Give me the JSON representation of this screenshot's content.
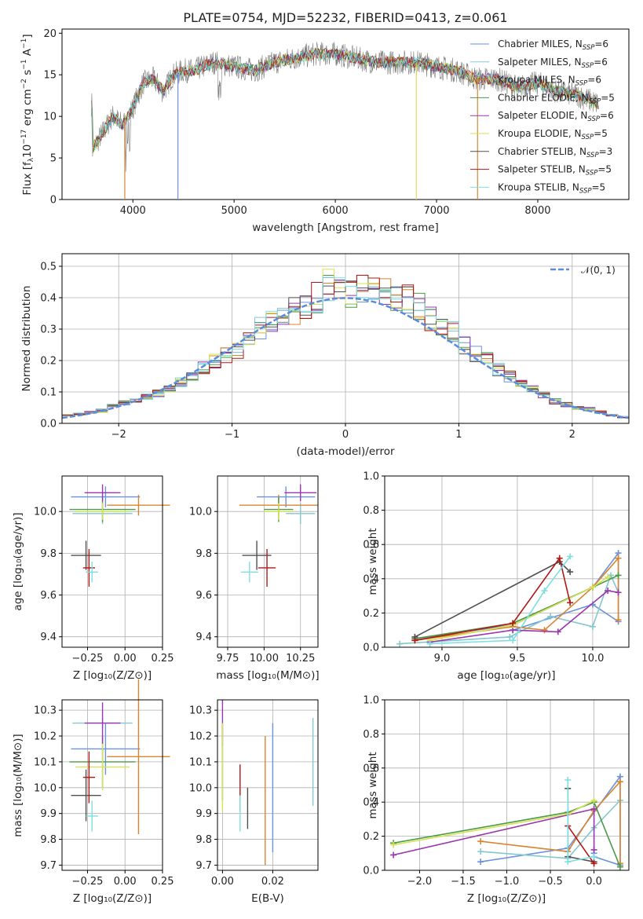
{
  "title": "PLATE=0754, MJD=52232, FIBERID=0413, z=0.061",
  "models": [
    {
      "name": "Chabrier MILES, N",
      "n": "=6",
      "color": "#6b93dd"
    },
    {
      "name": "Salpeter MILES, N",
      "n": "=6",
      "color": "#82c8cd"
    },
    {
      "name": "Kroupa MILES, N",
      "n": "=6",
      "color": "#d98530"
    },
    {
      "name": "Chabrier ELODIE, N",
      "n": "=5",
      "color": "#4a9a48"
    },
    {
      "name": "Salpeter ELODIE, N",
      "n": "=6",
      "color": "#9a36b0"
    },
    {
      "name": "Kroupa ELODIE, N",
      "n": "=5",
      "color": "#d6e156"
    },
    {
      "name": "Chabrier STELIB, N",
      "n": "=3",
      "color": "#505050"
    },
    {
      "name": "Salpeter STELIB, N",
      "n": "=5",
      "color": "#b01818"
    },
    {
      "name": "Kroupa STELIB, N",
      "n": "=5",
      "color": "#7edfe3"
    }
  ],
  "legend_sub": "SSP",
  "panels": {
    "spectrum": {
      "xlabel": "wavelength [Angstrom, rest frame]",
      "ylabel_a": "Flux [f",
      "ylabel_b": "10",
      "ylabel_c": "−17",
      "ylabel_d": " erg cm",
      "ylabel_e": "−2",
      "ylabel_f": " s",
      "ylabel_g": "−1",
      "ylabel_h": " A",
      "ylabel_i": "−1",
      "ylabel_j": "]",
      "xticks": [
        "4000",
        "5000",
        "6000",
        "7000",
        "8000"
      ],
      "yticks": [
        "0",
        "5",
        "10",
        "15",
        "20"
      ]
    },
    "residuals": {
      "xlabel": "(data-model)/error",
      "ylabel": "Normed distribution",
      "legend": "𝒩(0, 1)",
      "xticks": [
        "−2",
        "−1",
        "0",
        "1",
        "2"
      ],
      "yticks": [
        "0.0",
        "0.1",
        "0.2",
        "0.3",
        "0.4",
        "0.5"
      ]
    },
    "age_vs_Z": {
      "xlabel": "Z [log₁₀(Z/Z⊙)]",
      "ylabel": "age  [log₁₀(age/yr)]",
      "xticks": [
        "−0.25",
        "0.00",
        "0.25"
      ],
      "yticks": [
        "9.4",
        "9.6",
        "9.8",
        "10.0"
      ]
    },
    "age_vs_mass": {
      "xlabel": "mass [log₁₀(M/M⊙)]",
      "xticks": [
        "9.75",
        "10.00",
        "10.25"
      ],
      "yticks": [
        "9.4",
        "9.6",
        "9.8",
        "10.0"
      ]
    },
    "weight_vs_age": {
      "xlabel": "age  [log₁₀(age/yr)]",
      "ylabel": "mass weight",
      "xticks": [
        "9.0",
        "9.5",
        "10.0"
      ],
      "yticks": [
        "0.0",
        "0.2",
        "0.4",
        "0.6",
        "0.8",
        "1.0"
      ]
    },
    "mass_vs_Z": {
      "xlabel": "Z [log₁₀(Z/Z⊙)]",
      "ylabel": "mass [log₁₀(M/M⊙)]",
      "xticks": [
        "−0.25",
        "0.00",
        "0.25"
      ],
      "yticks": [
        "9.7",
        "9.8",
        "9.9",
        "10.0",
        "10.1",
        "10.2",
        "10.3"
      ]
    },
    "mass_vs_ebv": {
      "xlabel": "E(B-V)",
      "xticks": [
        "0.00",
        "0.02"
      ],
      "yticks": [
        "9.7",
        "9.8",
        "9.9",
        "10.0",
        "10.1",
        "10.2",
        "10.3"
      ]
    },
    "weight_vs_Z": {
      "xlabel": "Z [log₁₀(Z/Z⊙)]",
      "ylabel": "mass weight",
      "xticks": [
        "−2.0",
        "−1.5",
        "−1.0",
        "−0.5",
        "0.0"
      ],
      "yticks": [
        "0.0",
        "0.2",
        "0.4",
        "0.6",
        "0.8",
        "1.0"
      ]
    }
  },
  "chart_data": [
    {
      "type": "line",
      "title": "PLATE=0754, MJD=52232, FIBERID=0413, z=0.061",
      "xlabel": "wavelength [Angstrom, rest frame]",
      "ylabel": "Flux [fλ10−17 erg cm−2 s−1 A−1]",
      "xlim": [
        3300,
        8900
      ],
      "ylim": [
        0,
        20.5
      ],
      "legend": "top-right",
      "x": [
        3600,
        3700,
        3800,
        3900,
        4000,
        4100,
        4200,
        4300,
        4400,
        4500,
        4600,
        4700,
        4800,
        5000,
        5200,
        5400,
        5600,
        5800,
        6000,
        6200,
        6400,
        6600,
        6800,
        7000,
        7200,
        7400,
        7600,
        7800,
        8000,
        8200,
        8400,
        8600
      ],
      "y": [
        6,
        8,
        10,
        9,
        11,
        14,
        14.5,
        13,
        15,
        15.5,
        15.5,
        16,
        16.5,
        16,
        15.5,
        16.5,
        17,
        17.5,
        17.5,
        17,
        16.5,
        16.5,
        16.5,
        16,
        15.5,
        14.5,
        14.5,
        13.5,
        14,
        13,
        12.5,
        11.5
      ]
    },
    {
      "type": "bar",
      "xlabel": "(data-model)/error",
      "ylabel": "Normed distribution",
      "xlim": [
        -2.5,
        2.5
      ],
      "ylim": [
        0,
        0.54
      ],
      "legend": "top-right",
      "bin_width": 0.1,
      "x": [
        -2.45,
        -2.35,
        -2.25,
        -2.15,
        -2.05,
        -1.95,
        -1.85,
        -1.75,
        -1.65,
        -1.55,
        -1.45,
        -1.35,
        -1.25,
        -1.15,
        -1.05,
        -0.95,
        -0.85,
        -0.75,
        -0.65,
        -0.55,
        -0.45,
        -0.35,
        -0.25,
        -0.15,
        -0.05,
        0.05,
        0.15,
        0.25,
        0.35,
        0.45,
        0.55,
        0.65,
        0.75,
        0.85,
        0.95,
        1.05,
        1.15,
        1.25,
        1.35,
        1.45,
        1.55,
        1.65,
        1.75,
        1.85,
        1.95,
        2.05,
        2.15,
        2.25,
        2.35,
        2.45
      ],
      "values": [
        0.025,
        0.03,
        0.035,
        0.04,
        0.055,
        0.065,
        0.07,
        0.085,
        0.095,
        0.11,
        0.13,
        0.15,
        0.18,
        0.2,
        0.22,
        0.23,
        0.26,
        0.3,
        0.32,
        0.34,
        0.36,
        0.38,
        0.4,
        0.44,
        0.42,
        0.42,
        0.44,
        0.43,
        0.41,
        0.41,
        0.4,
        0.37,
        0.33,
        0.3,
        0.29,
        0.25,
        0.22,
        0.2,
        0.17,
        0.15,
        0.13,
        0.11,
        0.09,
        0.07,
        0.06,
        0.05,
        0.045,
        0.035,
        0.025,
        0.02
      ],
      "series": [
        {
          "name": "𝒩(0, 1)",
          "mu": 0,
          "sigma": 1
        }
      ]
    },
    {
      "type": "scatter",
      "xlabel": "Z [log₁₀(Z/Z⊙)]",
      "ylabel": "age  [log₁₀(age/yr)]",
      "xlim": [
        -0.42,
        0.25
      ],
      "ylim": [
        9.35,
        10.17
      ],
      "x": [
        -0.13,
        -0.15,
        0.09,
        -0.15,
        -0.15,
        -0.15,
        -0.26,
        -0.24,
        -0.22
      ],
      "y": [
        10.07,
        9.99,
        10.03,
        10.01,
        10.09,
        10.0,
        9.79,
        9.73,
        9.71
      ],
      "xerr": [
        0.23,
        0.2,
        0.21,
        0.22,
        0.12,
        0.18,
        0.1,
        0.04,
        0.04
      ],
      "yerr": [
        0.05,
        0.05,
        0.05,
        0.06,
        0.04,
        0.04,
        0.07,
        0.09,
        0.05
      ]
    },
    {
      "type": "scatter",
      "xlabel": "mass [log₁₀(M/M⊙)]",
      "xlim": [
        9.68,
        10.37
      ],
      "ylim": [
        9.35,
        10.17
      ],
      "x": [
        10.15,
        10.25,
        10.1,
        10.1,
        10.25,
        10.1,
        9.95,
        10.02,
        9.9
      ],
      "y": [
        10.07,
        9.99,
        10.03,
        10.01,
        10.09,
        10.0,
        9.79,
        9.73,
        9.71
      ],
      "xerr": [
        0.2,
        0.1,
        0.27,
        0.1,
        0.11,
        0.1,
        0.1,
        0.06,
        0.06
      ],
      "yerr": [
        0.05,
        0.05,
        0.05,
        0.06,
        0.04,
        0.04,
        0.07,
        0.09,
        0.05
      ]
    },
    {
      "type": "line",
      "xlabel": "age  [log₁₀(age/yr)]",
      "ylabel": "mass weight",
      "xlim": [
        8.62,
        10.24
      ],
      "ylim": [
        0,
        1
      ],
      "series": [
        {
          "x": [
            8.82,
            9.47,
            10.0,
            10.17,
            10.17,
            10.0,
            9.47
          ],
          "y": [
            0.05,
            0.13,
            0.35,
            0.55,
            0.15,
            0.25,
            0.1
          ]
        },
        {
          "x": [
            8.72,
            9.45,
            9.72,
            10.0,
            10.12,
            10.17
          ],
          "y": [
            0.02,
            0.06,
            0.18,
            0.12,
            0.42,
            0.32
          ]
        },
        {
          "x": [
            8.82,
            9.47,
            9.68,
            10.0,
            10.17,
            10.17
          ],
          "y": [
            0.04,
            0.12,
            0.1,
            0.35,
            0.52,
            0.16
          ]
        },
        {
          "x": [
            8.82,
            9.47,
            10.0,
            10.17
          ],
          "y": [
            0.05,
            0.14,
            0.35,
            0.42
          ]
        },
        {
          "x": [
            8.92,
            9.47,
            9.77,
            10.1,
            10.17
          ],
          "y": [
            0.03,
            0.1,
            0.09,
            0.33,
            0.32
          ]
        },
        {
          "x": [
            8.92,
            9.47,
            10.0,
            10.1
          ],
          "y": [
            0.04,
            0.13,
            0.35,
            0.41
          ]
        },
        {
          "x": [
            8.82,
            9.78,
            9.85
          ],
          "y": [
            0.06,
            0.5,
            0.44
          ]
        },
        {
          "x": [
            8.82,
            9.47,
            9.78,
            9.85
          ],
          "y": [
            0.04,
            0.14,
            0.52,
            0.26
          ]
        },
        {
          "x": [
            8.92,
            9.47,
            9.68,
            9.85
          ],
          "y": [
            0.02,
            0.04,
            0.33,
            0.53
          ]
        }
      ]
    },
    {
      "type": "scatter",
      "xlabel": "Z [log₁₀(Z/Z⊙)]",
      "ylabel": "mass [log₁₀(M/M⊙)]",
      "xlim": [
        -0.42,
        0.25
      ],
      "ylim": [
        9.68,
        10.34
      ],
      "x": [
        -0.13,
        -0.15,
        0.09,
        -0.15,
        -0.15,
        -0.15,
        -0.26,
        -0.24,
        -0.22
      ],
      "y": [
        10.15,
        10.25,
        10.12,
        10.1,
        10.25,
        10.08,
        9.97,
        10.04,
        9.89
      ],
      "xerr": [
        0.23,
        0.2,
        0.21,
        0.22,
        0.12,
        0.18,
        0.1,
        0.04,
        0.04
      ],
      "yerr": [
        0.1,
        0.02,
        0.3,
        0.1,
        0.08,
        0.09,
        0.1,
        0.1,
        0.06
      ]
    },
    {
      "type": "scatter",
      "xlabel": "E(B-V)",
      "xlim": [
        -0.002,
        0.038
      ],
      "ylim": [
        9.68,
        10.34
      ],
      "x": [
        0.02,
        0.036,
        0.017,
        0.0,
        0.0,
        0.0,
        0.01,
        0.007,
        0.007
      ],
      "y": [
        10.0,
        10.1,
        9.95,
        10.1,
        10.25,
        10.08,
        9.92,
        10.0,
        9.9
      ],
      "yerr": [
        0.25,
        0.17,
        0.25,
        0.15,
        0.09,
        0.17,
        0.08,
        0.09,
        0.07
      ]
    },
    {
      "type": "line",
      "xlabel": "Z [log₁₀(Z/Z⊙)]",
      "ylabel": "mass weight",
      "xlim": [
        -2.4,
        0.4
      ],
      "ylim": [
        0,
        1
      ],
      "series": [
        {
          "x": [
            -1.3,
            -0.3,
            0.3,
            0.3,
            0.0,
            0.0
          ],
          "y": [
            0.05,
            0.13,
            0.55,
            0.03,
            0.08,
            0.1
          ]
        },
        {
          "x": [
            -1.3,
            -0.3,
            0.0,
            0.3
          ],
          "y": [
            0.11,
            0.07,
            0.25,
            0.41
          ]
        },
        {
          "x": [
            -1.3,
            -0.3,
            0.0,
            0.3,
            0.3
          ],
          "y": [
            0.17,
            0.11,
            0.35,
            0.52,
            0.04
          ]
        },
        {
          "x": [
            -2.3,
            -0.3,
            0.0,
            0.3
          ],
          "y": [
            0.16,
            0.34,
            0.4,
            0.02
          ]
        },
        {
          "x": [
            -2.3,
            0.0,
            0.0
          ],
          "y": [
            0.09,
            0.36,
            0.12
          ]
        },
        {
          "x": [
            -2.3,
            -0.3,
            0.0
          ],
          "y": [
            0.15,
            0.33,
            0.41
          ]
        },
        {
          "x": [
            -0.3,
            -0.3,
            0.0
          ],
          "y": [
            0.48,
            0.08,
            0.05
          ]
        },
        {
          "x": [
            -0.3,
            0.0
          ],
          "y": [
            0.26,
            0.04
          ]
        },
        {
          "x": [
            -0.3,
            -0.3,
            0.0
          ],
          "y": [
            0.53,
            0.05,
            0.08
          ]
        }
      ]
    }
  ]
}
